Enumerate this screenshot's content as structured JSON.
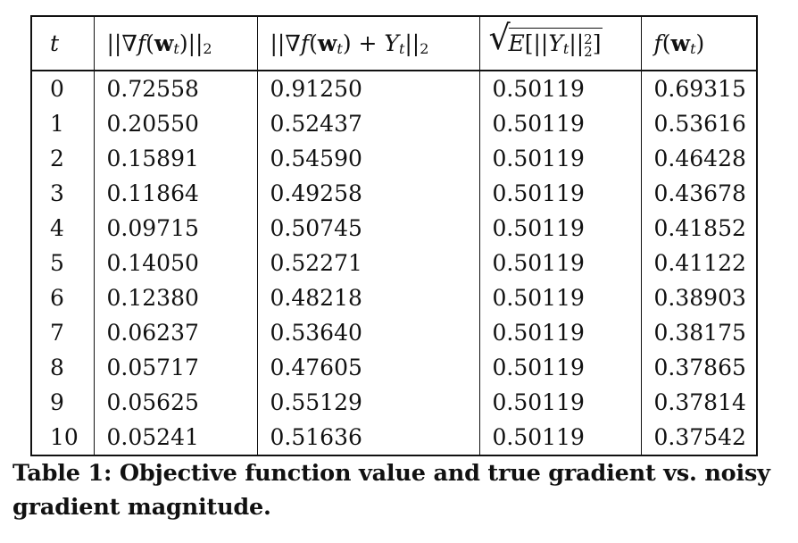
{
  "table": {
    "headers": [
      "t",
      "||∇f(wt)||2",
      "||∇f(wt) + Yt||2",
      "√E[||Yt||22]",
      "f(wt)"
    ],
    "rows": [
      [
        "0",
        "0.72558",
        "0.91250",
        "0.50119",
        "0.69315"
      ],
      [
        "1",
        "0.20550",
        "0.52437",
        "0.50119",
        "0.53616"
      ],
      [
        "2",
        "0.15891",
        "0.54590",
        "0.50119",
        "0.46428"
      ],
      [
        "3",
        "0.11864",
        "0.49258",
        "0.50119",
        "0.43678"
      ],
      [
        "4",
        "0.09715",
        "0.50745",
        "0.50119",
        "0.41852"
      ],
      [
        "5",
        "0.14050",
        "0.52271",
        "0.50119",
        "0.41122"
      ],
      [
        "6",
        "0.12380",
        "0.48218",
        "0.50119",
        "0.38903"
      ],
      [
        "7",
        "0.06237",
        "0.53640",
        "0.50119",
        "0.38175"
      ],
      [
        "8",
        "0.05717",
        "0.47605",
        "0.50119",
        "0.37865"
      ],
      [
        "9",
        "0.05625",
        "0.55129",
        "0.50119",
        "0.37814"
      ],
      [
        "10",
        "0.05241",
        "0.51636",
        "0.50119",
        "0.37542"
      ]
    ]
  },
  "caption": "Table 1: Objective function value and true gradient vs. noisy gradient magnitude."
}
